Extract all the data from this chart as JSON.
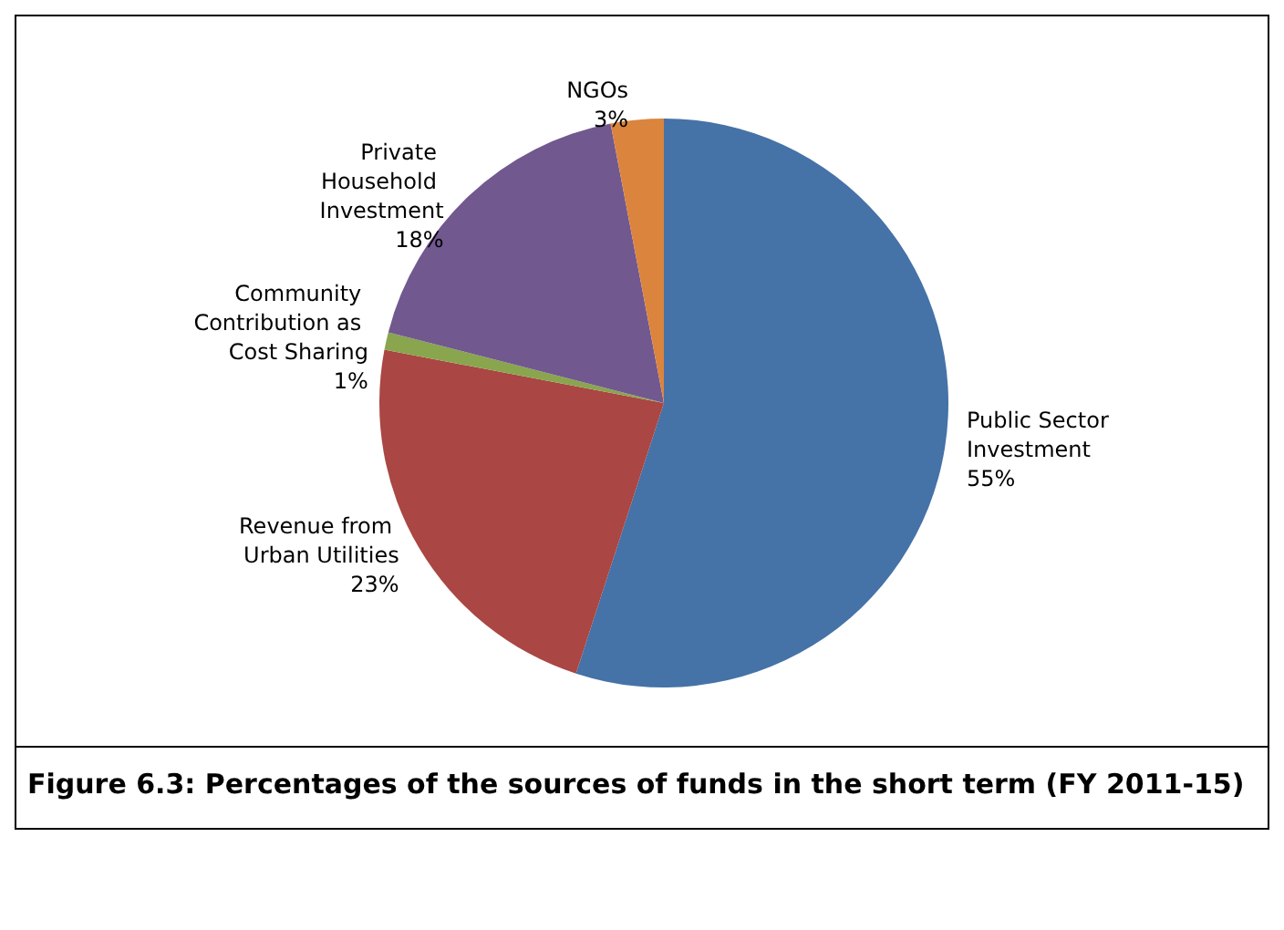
{
  "chart_data": {
    "type": "pie",
    "title": "Figure 6.3: Percentages of the sources of funds in the short term (FY 2011-15)",
    "categories": [
      "Public Sector Investment",
      "Revenue from Urban Utilities",
      "Community Contribution as Cost Sharing",
      "Private Household Investment",
      "NGOs"
    ],
    "values": [
      55,
      23,
      1,
      18,
      3
    ],
    "colors": [
      "#4572a7",
      "#aa4643",
      "#89a54e",
      "#71588f",
      "#db843d"
    ],
    "value_labels": [
      "55%",
      "23%",
      "1%",
      "18%",
      "3%"
    ]
  }
}
